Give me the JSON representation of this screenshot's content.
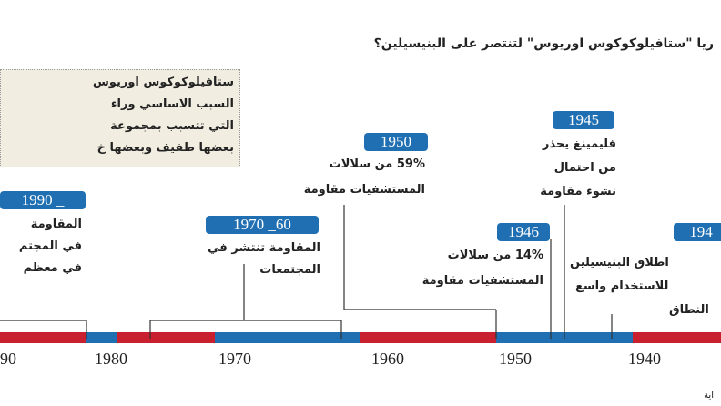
{
  "title": "ريا \"ستافيلوكوكوس اوريوس\" لتنتصر على البنيسيلين؟",
  "note_box": {
    "lines": [
      "ستافيلوكوكوس اوريوس",
      "السبب الاساسي وراء",
      "التي تتسبب بمجموعة",
      "بعضها طفيف وبعضها خ"
    ]
  },
  "events": [
    {
      "year": "1990 _",
      "lines": [
        "المقاومة",
        "في المجتم",
        "في معظم"
      ]
    },
    {
      "year": "1970 _60",
      "lines": [
        "المقاومة تنتشر في",
        "المجتمعات"
      ]
    },
    {
      "year": "1950",
      "lines": [
        "59% من سلالات",
        "المستشفيات مقاومة"
      ]
    },
    {
      "year": "1945",
      "lines": [
        "فليمينغ يحذر",
        "من احتمال",
        "نشوء مقاومة"
      ]
    },
    {
      "year": "1946",
      "lines": [
        "14% من سلالات",
        "المستشفيات مقاومة"
      ]
    },
    {
      "year": "194",
      "lines": [
        "اطلاق البنيسيلين",
        "للاستخدام واسع",
        "النطاق"
      ]
    }
  ],
  "axis": {
    "labels": [
      "90",
      "1980",
      "1970",
      "1960",
      "1950",
      "1940"
    ]
  },
  "source": "اية"
}
